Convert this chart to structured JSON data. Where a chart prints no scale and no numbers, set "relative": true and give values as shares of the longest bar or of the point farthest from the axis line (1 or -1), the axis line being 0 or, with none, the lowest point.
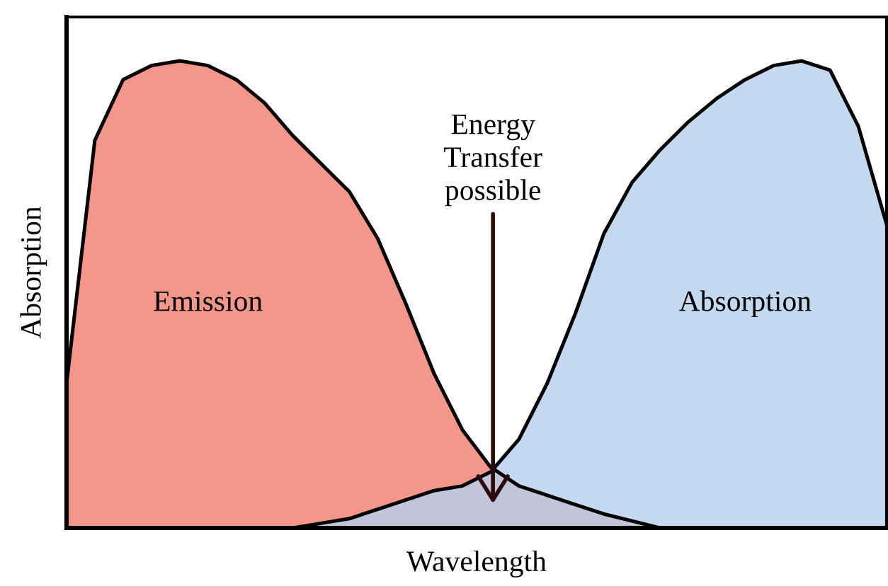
{
  "chart_data": {
    "type": "area",
    "relative": true,
    "xlabel": "Wavelength",
    "ylabel": "Absorption",
    "categories": [
      null,
      null,
      null,
      null,
      null,
      null,
      null,
      null,
      null,
      null,
      null,
      null,
      null,
      null,
      null,
      null,
      null,
      null,
      null,
      null,
      null,
      null,
      null,
      null,
      null,
      null,
      null,
      null,
      null,
      null
    ],
    "series": [
      {
        "name": "Emission",
        "color": "#f4968a",
        "values": [
          0.31,
          0.83,
          0.96,
          0.99,
          1.0,
          0.99,
          0.96,
          0.91,
          0.84,
          0.78,
          0.72,
          0.62,
          0.48,
          0.33,
          0.21,
          0.13,
          0.09,
          0.07,
          0.05,
          0.03,
          0.015,
          0,
          null,
          null,
          null,
          null,
          null,
          null,
          null,
          null
        ]
      },
      {
        "name": "Absorption",
        "color": "#b5d0ec",
        "values": [
          null,
          null,
          null,
          null,
          null,
          null,
          null,
          null,
          0,
          0.01,
          0.02,
          0.04,
          0.06,
          0.08,
          0.09,
          0.12,
          0.19,
          0.31,
          0.46,
          0.63,
          0.74,
          0.81,
          0.87,
          0.92,
          0.96,
          0.99,
          1.0,
          0.98,
          0.86,
          0.65
        ]
      }
    ],
    "annotations": [
      "Energy\nTransfer\npossible"
    ],
    "legend": false,
    "grid": false
  }
}
